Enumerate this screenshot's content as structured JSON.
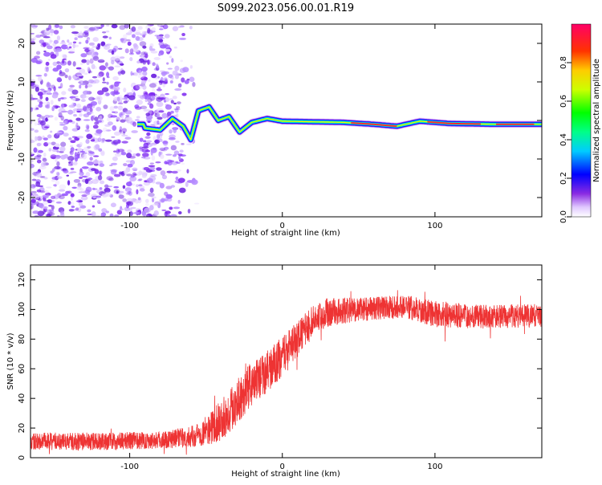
{
  "title": "S099.2023.056.00.01.R19",
  "chart_data": [
    {
      "type": "heatmap",
      "name": "spectrogram",
      "xlabel": "Height of straight line (km)",
      "ylabel": "Frequency (Hz)",
      "xlim": [
        -165,
        170
      ],
      "ylim": [
        -25,
        25
      ],
      "xticks": [
        -100,
        0,
        100
      ],
      "yticks": [
        -20,
        -10,
        0,
        10,
        20
      ],
      "colorbar": {
        "label": "Normalized spectral amplitude",
        "range": [
          0,
          1
        ],
        "ticks": [
          "0.0",
          "0.2",
          "0.4",
          "0.6",
          "0.8"
        ],
        "colormap": "rainbow"
      },
      "signal_track": [
        {
          "x": -90,
          "f": -2.0
        },
        {
          "x": -80,
          "f": -2.5
        },
        {
          "x": -72,
          "f": 0.5
        },
        {
          "x": -65,
          "f": -1.5
        },
        {
          "x": -60,
          "f": -5.0
        },
        {
          "x": -55,
          "f": 2.5
        },
        {
          "x": -48,
          "f": 3.5
        },
        {
          "x": -42,
          "f": 0.0
        },
        {
          "x": -35,
          "f": 1.0
        },
        {
          "x": -28,
          "f": -3.0
        },
        {
          "x": -20,
          "f": -0.5
        },
        {
          "x": -10,
          "f": 0.5
        },
        {
          "x": 0,
          "f": -0.2
        },
        {
          "x": 40,
          "f": -0.5
        },
        {
          "x": 60,
          "f": -1.0
        },
        {
          "x": 75,
          "f": -1.5
        },
        {
          "x": 90,
          "f": -0.2
        },
        {
          "x": 110,
          "f": -0.8
        },
        {
          "x": 140,
          "f": -1.0
        },
        {
          "x": 170,
          "f": -1.0
        }
      ]
    },
    {
      "type": "line",
      "name": "snr",
      "xlabel": "Height of straight line (km)",
      "ylabel": "SNR (10 * v/v)",
      "xlim": [
        -165,
        170
      ],
      "ylim": [
        0,
        130
      ],
      "xticks": [
        -100,
        0,
        100
      ],
      "yticks": [
        0,
        20,
        40,
        60,
        80,
        100,
        120
      ],
      "line_color": "#ee3333",
      "envelope": {
        "x": [
          -165,
          -120,
          -80,
          -60,
          -50,
          -40,
          -30,
          -20,
          -10,
          0,
          10,
          20,
          30,
          50,
          80,
          100,
          130,
          170
        ],
        "mean": [
          11,
          11,
          12,
          14,
          18,
          25,
          38,
          50,
          58,
          68,
          80,
          93,
          98,
          100,
          102,
          97,
          95,
          96
        ],
        "noise": [
          6,
          6,
          6,
          7,
          10,
          14,
          16,
          15,
          14,
          14,
          12,
          10,
          10,
          8,
          8,
          9,
          8,
          8
        ]
      }
    }
  ]
}
